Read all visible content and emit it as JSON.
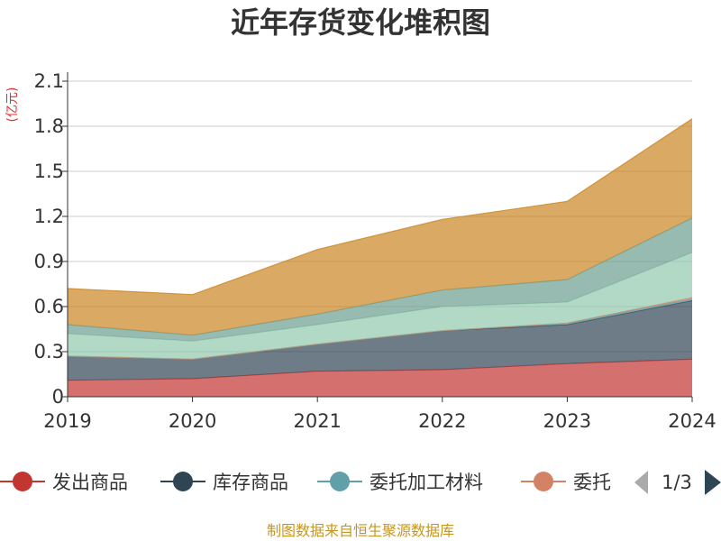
{
  "chart_data": {
    "type": "area",
    "stacked": true,
    "title": "近年存货变化堆积图",
    "unit": "(亿元)",
    "x": [
      "2019",
      "2020",
      "2021",
      "2022",
      "2023",
      "2024"
    ],
    "ylim": [
      0,
      2.1
    ],
    "yticks": [
      "0",
      "0.3",
      "0.6",
      "0.9",
      "1.2",
      "1.5",
      "1.8",
      "2.1"
    ],
    "grid": true,
    "series": [
      {
        "name": "发出商品",
        "color": "#c23531",
        "values": [
          0.11,
          0.12,
          0.17,
          0.18,
          0.22,
          0.25
        ]
      },
      {
        "name": "库存商品",
        "color": "#2f4554",
        "values": [
          0.16,
          0.13,
          0.18,
          0.26,
          0.26,
          0.39
        ]
      },
      {
        "name": "委托加工材料",
        "color": "#61a0a8",
        "values": [
          0.0,
          0.0,
          0.0,
          0.0,
          0.01,
          0.01
        ]
      },
      {
        "name": "委托",
        "color": "#d48265",
        "values": [
          0.0,
          0.0,
          0.0,
          0.0,
          0.0,
          0.01
        ]
      },
      {
        "name": "",
        "color": "#91c7ae",
        "values": [
          0.15,
          0.12,
          0.13,
          0.16,
          0.14,
          0.3
        ]
      },
      {
        "name": "",
        "color": "#6b9e8f",
        "values": [
          0.06,
          0.04,
          0.07,
          0.11,
          0.15,
          0.23
        ]
      },
      {
        "name": "",
        "color": "#ca8622",
        "values": [
          0.24,
          0.27,
          0.43,
          0.47,
          0.52,
          0.66
        ]
      }
    ],
    "legend": {
      "position": "bottom",
      "page": "1/3"
    }
  },
  "source": "制图数据来自恒生聚源数据库"
}
